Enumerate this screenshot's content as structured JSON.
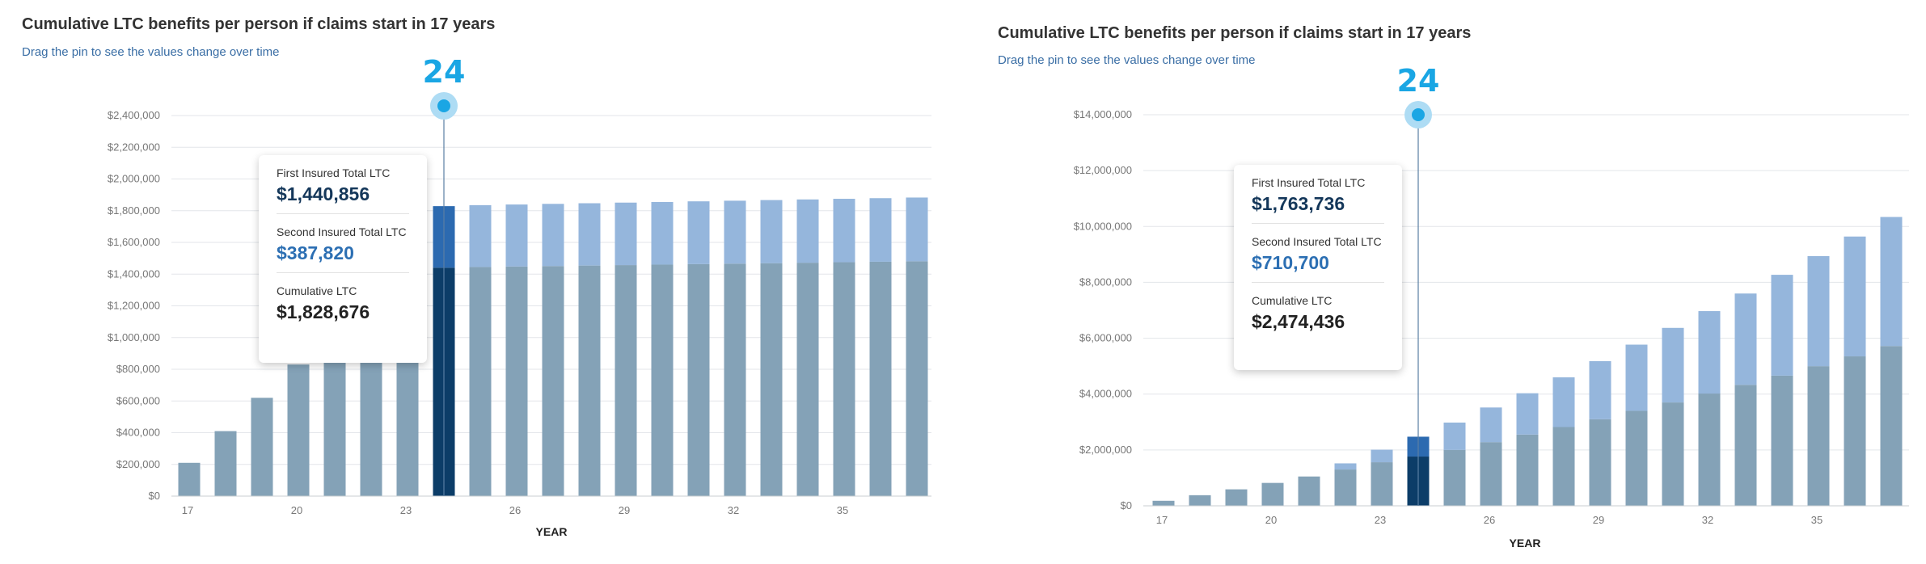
{
  "colors": {
    "first_insured": "#84a2b7",
    "second_insured": "#95b6dc",
    "highlight_first": "#0c3d68",
    "highlight_second": "#2c6ab0",
    "pin": "#1aa6e4",
    "pin_halo": "#aedcf4",
    "grid": "#e3e6ea",
    "axis_text": "#777777"
  },
  "charts": [
    {
      "title": "Cumulative LTC benefits per person if claims start in 17 years",
      "subtitle": "Drag the pin to see the values change over time",
      "pin_label": "24",
      "tooltip": {
        "first_label": "First Insured Total LTC",
        "first_value": "$1,440,856",
        "second_label": "Second Insured Total LTC",
        "second_value": "$387,820",
        "cumulative_label": "Cumulative LTC",
        "cumulative_value": "$1,828,676"
      }
    },
    {
      "title": "Cumulative LTC benefits per person if claims start in 17 years",
      "subtitle": "Drag the pin to see the values change over time",
      "pin_label": "24",
      "tooltip": {
        "first_label": "First Insured Total LTC",
        "first_value": "$1,763,736",
        "second_label": "Second Insured Total LTC",
        "second_value": "$710,700",
        "cumulative_label": "Cumulative LTC",
        "cumulative_value": "$2,474,436"
      }
    }
  ],
  "chart_data": [
    {
      "type": "bar",
      "stacked": true,
      "title": "Cumulative LTC benefits per person if claims start in 17 years",
      "xlabel": "YEAR",
      "ylabel": "",
      "x": [
        17,
        18,
        19,
        20,
        21,
        22,
        23,
        24,
        25,
        26,
        27,
        28,
        29,
        30,
        31,
        32,
        33,
        34,
        35,
        36,
        37
      ],
      "xticks": [
        17,
        20,
        23,
        26,
        29,
        32,
        35
      ],
      "ylim": [
        0,
        2400000
      ],
      "yticks": [
        0,
        200000,
        400000,
        600000,
        800000,
        1000000,
        1200000,
        1400000,
        1600000,
        1800000,
        2000000,
        2200000,
        2400000
      ],
      "ytick_labels": [
        "$0",
        "$200,000",
        "$400,000",
        "$600,000",
        "$800,000",
        "$1,000,000",
        "$1,200,000",
        "$1,400,000",
        "$1,600,000",
        "$1,800,000",
        "$2,000,000",
        "$2,200,000",
        "$2,400,000"
      ],
      "highlight_x": 24,
      "series": [
        {
          "name": "First Insured Total LTC",
          "values": [
            210000,
            410000,
            620000,
            830000,
            850000,
            850000,
            850000,
            1440856,
            1445000,
            1448000,
            1451000,
            1454000,
            1457000,
            1460000,
            1463000,
            1466000,
            1469000,
            1472000,
            1475000,
            1478000,
            1481000
          ]
        },
        {
          "name": "Second Insured Total LTC",
          "values": [
            0,
            0,
            0,
            0,
            0,
            0,
            0,
            387820,
            390000,
            391000,
            392000,
            393000,
            394000,
            395000,
            396000,
            397000,
            398000,
            399000,
            400000,
            401000,
            402000
          ]
        }
      ]
    },
    {
      "type": "bar",
      "stacked": true,
      "title": "Cumulative LTC benefits per person if claims start in 17 years",
      "xlabel": "YEAR",
      "ylabel": "",
      "x": [
        17,
        18,
        19,
        20,
        21,
        22,
        23,
        24,
        25,
        26,
        27,
        28,
        29,
        30,
        31,
        32,
        33,
        34,
        35,
        36,
        37
      ],
      "xticks": [
        17,
        20,
        23,
        26,
        29,
        32,
        35
      ],
      "ylim": [
        0,
        14000000
      ],
      "yticks": [
        0,
        2000000,
        4000000,
        6000000,
        8000000,
        10000000,
        12000000,
        14000000
      ],
      "ytick_labels": [
        "$0",
        "$2,000,000",
        "$4,000,000",
        "$6,000,000",
        "$8,000,000",
        "$10,000,000",
        "$12,000,000",
        "$14,000,000"
      ],
      "highlight_x": 24,
      "series": [
        {
          "name": "First Insured Total LTC",
          "values": [
            180000,
            380000,
            590000,
            820000,
            1050000,
            1300000,
            1560000,
            1763736,
            2000000,
            2280000,
            2550000,
            2820000,
            3100000,
            3400000,
            3700000,
            4020000,
            4330000,
            4660000,
            5000000,
            5350000,
            5720000
          ]
        },
        {
          "name": "Second Insured Total LTC",
          "values": [
            0,
            0,
            0,
            0,
            0,
            220000,
            450000,
            710700,
            980000,
            1240000,
            1480000,
            1780000,
            2080000,
            2370000,
            2670000,
            2950000,
            3270000,
            3610000,
            3940000,
            4290000,
            4620000
          ]
        }
      ]
    }
  ]
}
